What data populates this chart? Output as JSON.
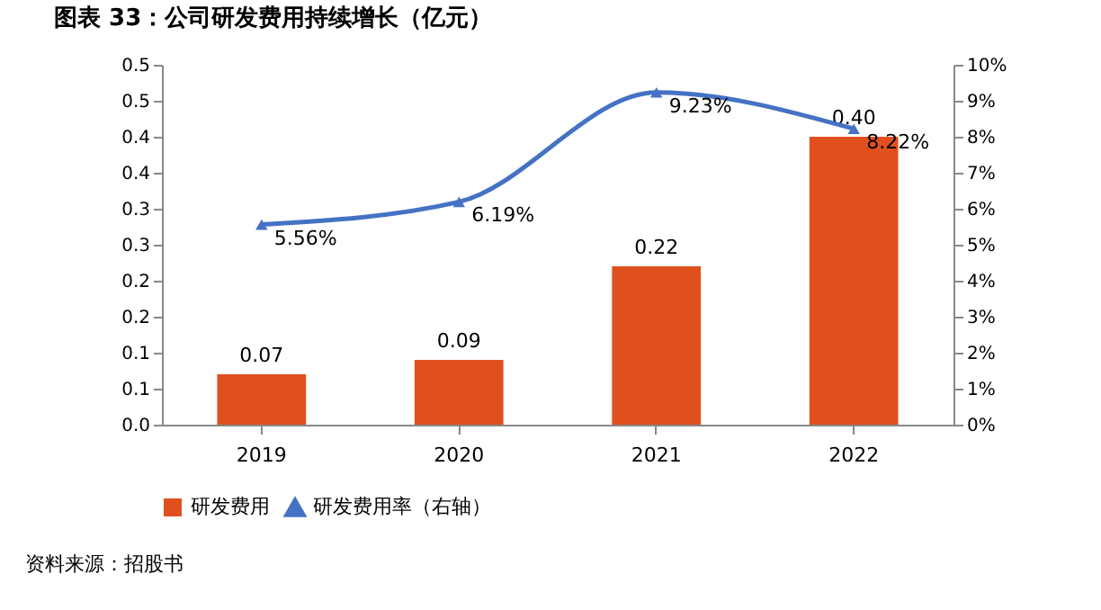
{
  "chart_data": {
    "type": "bar",
    "title": "图表 33：公司研发费用持续增长（亿元）",
    "categories": [
      "2019",
      "2020",
      "2021",
      "2022"
    ],
    "series": [
      {
        "name": "研发费用",
        "color": "#e0501e",
        "values": [
          0.07,
          0.09,
          0.22,
          0.4
        ],
        "value_labels": [
          "0.07",
          "0.09",
          "0.22",
          "0.40"
        ]
      },
      {
        "name": "研发费用率（右轴）",
        "type": "line",
        "axis": "y2",
        "color": "#4472c4",
        "values": [
          5.56,
          6.19,
          9.23,
          8.22
        ],
        "value_labels": [
          "5.56%",
          "6.19%",
          "9.23%",
          "8.22%"
        ]
      }
    ],
    "ylim": [
      0,
      0.5
    ],
    "yticks": [
      {
        "value": 0,
        "label": "0.0"
      },
      {
        "value": 0.05,
        "label": "0.1"
      },
      {
        "value": 0.1,
        "label": "0.1"
      },
      {
        "value": 0.15,
        "label": "0.2"
      },
      {
        "value": 0.2,
        "label": "0.2"
      },
      {
        "value": 0.25,
        "label": "0.3"
      },
      {
        "value": 0.3,
        "label": "0.3"
      },
      {
        "value": 0.35,
        "label": "0.4"
      },
      {
        "value": 0.4,
        "label": "0.4"
      },
      {
        "value": 0.45,
        "label": "0.5"
      },
      {
        "value": 0.5,
        "label": "0.5"
      }
    ],
    "y2lim": [
      0,
      10
    ],
    "y2ticks": [
      {
        "value": 0,
        "label": "0%"
      },
      {
        "value": 1,
        "label": "1%"
      },
      {
        "value": 2,
        "label": "2%"
      },
      {
        "value": 3,
        "label": "3%"
      },
      {
        "value": 4,
        "label": "4%"
      },
      {
        "value": 5,
        "label": "5%"
      },
      {
        "value": 6,
        "label": "6%"
      },
      {
        "value": 7,
        "label": "7%"
      },
      {
        "value": 8,
        "label": "8%"
      },
      {
        "value": 9,
        "label": "9%"
      },
      {
        "value": 10,
        "label": "10%"
      }
    ],
    "marker": "triangle",
    "legend": "bottom",
    "grid": false,
    "annotations": [
      "资料来源：招股书"
    ]
  }
}
